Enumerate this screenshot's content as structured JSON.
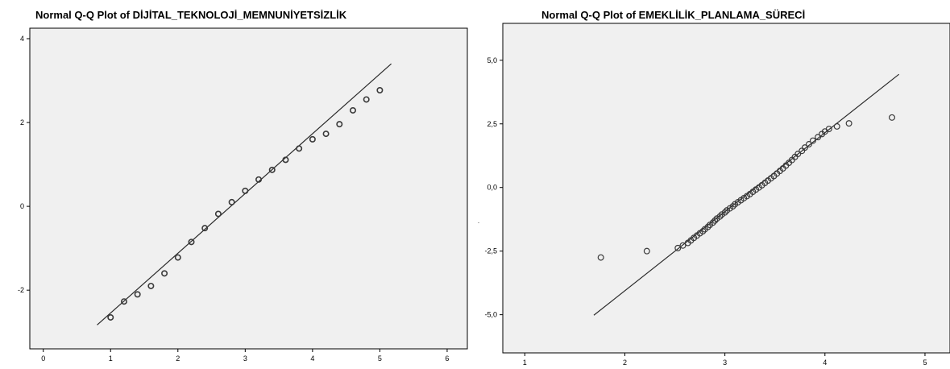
{
  "colors": {
    "panel_bg": "#f0f0f0",
    "frame": "#000000",
    "line": "#2b2b2b",
    "marker": "#3a3a3a"
  },
  "stray_mark": ".",
  "chart_data": [
    {
      "type": "scatter",
      "title": "Normal Q-Q Plot of DİJİTAL_TEKNOLOJİ_MEMNUNİYETSİZLİK",
      "xlabel": "",
      "ylabel": "",
      "xlim": [
        -0.2,
        6.3
      ],
      "ylim": [
        -3.4,
        4.25
      ],
      "x_ticks": [
        0,
        1,
        2,
        3,
        4,
        5,
        6
      ],
      "x_tick_labels": [
        "0",
        "1",
        "2",
        "3",
        "4",
        "5",
        "6"
      ],
      "y_ticks": [
        -2,
        0,
        2,
        4
      ],
      "y_tick_labels": [
        "-2",
        "0",
        "2",
        "4"
      ],
      "grid": false,
      "reference_line": [
        [
          0.8,
          -2.83
        ],
        [
          5.17,
          3.4
        ]
      ],
      "points": [
        [
          1.0,
          -2.65
        ],
        [
          1.2,
          -2.27
        ],
        [
          1.4,
          -2.1
        ],
        [
          1.6,
          -1.9
        ],
        [
          1.8,
          -1.6
        ],
        [
          2.0,
          -1.22
        ],
        [
          2.2,
          -0.85
        ],
        [
          2.4,
          -0.52
        ],
        [
          2.6,
          -0.18
        ],
        [
          2.8,
          0.1
        ],
        [
          3.0,
          0.37
        ],
        [
          3.2,
          0.64
        ],
        [
          3.4,
          0.87
        ],
        [
          3.6,
          1.11
        ],
        [
          3.8,
          1.38
        ],
        [
          4.0,
          1.6
        ],
        [
          4.2,
          1.73
        ],
        [
          4.4,
          1.96
        ],
        [
          4.6,
          2.29
        ],
        [
          4.8,
          2.55
        ],
        [
          5.0,
          2.77
        ]
      ]
    },
    {
      "type": "scatter",
      "title": "Normal Q-Q Plot of EMEKLİLİK_PLANLAMA_SÜRECİ",
      "xlabel": "",
      "ylabel": "",
      "xlim": [
        0.78,
        5.25
      ],
      "ylim": [
        -6.5,
        6.45
      ],
      "x_ticks": [
        1,
        2,
        3,
        4,
        5
      ],
      "x_tick_labels": [
        "1",
        "2",
        "3",
        "4",
        "5"
      ],
      "y_ticks": [
        -5,
        -2.5,
        0,
        2.5,
        5
      ],
      "y_tick_labels": [
        "-5,0",
        "-2,5",
        "0,0",
        "2,5",
        "5,0"
      ],
      "grid": false,
      "reference_line": [
        [
          1.69,
          -5.02
        ],
        [
          4.74,
          4.45
        ]
      ],
      "points": [
        [
          1.76,
          -2.75
        ],
        [
          2.22,
          -2.5
        ],
        [
          2.53,
          -2.38
        ],
        [
          2.58,
          -2.28
        ],
        [
          2.63,
          -2.18
        ],
        [
          2.66,
          -2.08
        ],
        [
          2.69,
          -1.98
        ],
        [
          2.72,
          -1.89
        ],
        [
          2.75,
          -1.8
        ],
        [
          2.78,
          -1.72
        ],
        [
          2.8,
          -1.64
        ],
        [
          2.83,
          -1.55
        ],
        [
          2.85,
          -1.47
        ],
        [
          2.88,
          -1.38
        ],
        [
          2.9,
          -1.3
        ],
        [
          2.92,
          -1.22
        ],
        [
          2.95,
          -1.14
        ],
        [
          2.97,
          -1.06
        ],
        [
          3.0,
          -0.98
        ],
        [
          3.02,
          -0.9
        ],
        [
          3.05,
          -0.82
        ],
        [
          3.08,
          -0.74
        ],
        [
          3.1,
          -0.66
        ],
        [
          3.13,
          -0.58
        ],
        [
          3.16,
          -0.5
        ],
        [
          3.19,
          -0.42
        ],
        [
          3.22,
          -0.34
        ],
        [
          3.25,
          -0.26
        ],
        [
          3.28,
          -0.17
        ],
        [
          3.31,
          -0.08
        ],
        [
          3.34,
          0.0
        ],
        [
          3.37,
          0.09
        ],
        [
          3.4,
          0.18
        ],
        [
          3.43,
          0.27
        ],
        [
          3.46,
          0.36
        ],
        [
          3.49,
          0.45
        ],
        [
          3.52,
          0.55
        ],
        [
          3.55,
          0.65
        ],
        [
          3.58,
          0.75
        ],
        [
          3.61,
          0.86
        ],
        [
          3.64,
          0.97
        ],
        [
          3.67,
          1.08
        ],
        [
          3.7,
          1.2
        ],
        [
          3.73,
          1.32
        ],
        [
          3.77,
          1.44
        ],
        [
          3.8,
          1.57
        ],
        [
          3.84,
          1.7
        ],
        [
          3.88,
          1.84
        ],
        [
          3.93,
          1.98
        ],
        [
          3.97,
          2.1
        ],
        [
          4.0,
          2.2
        ],
        [
          4.04,
          2.3
        ],
        [
          4.12,
          2.4
        ],
        [
          4.24,
          2.52
        ],
        [
          4.67,
          2.75
        ]
      ]
    }
  ]
}
